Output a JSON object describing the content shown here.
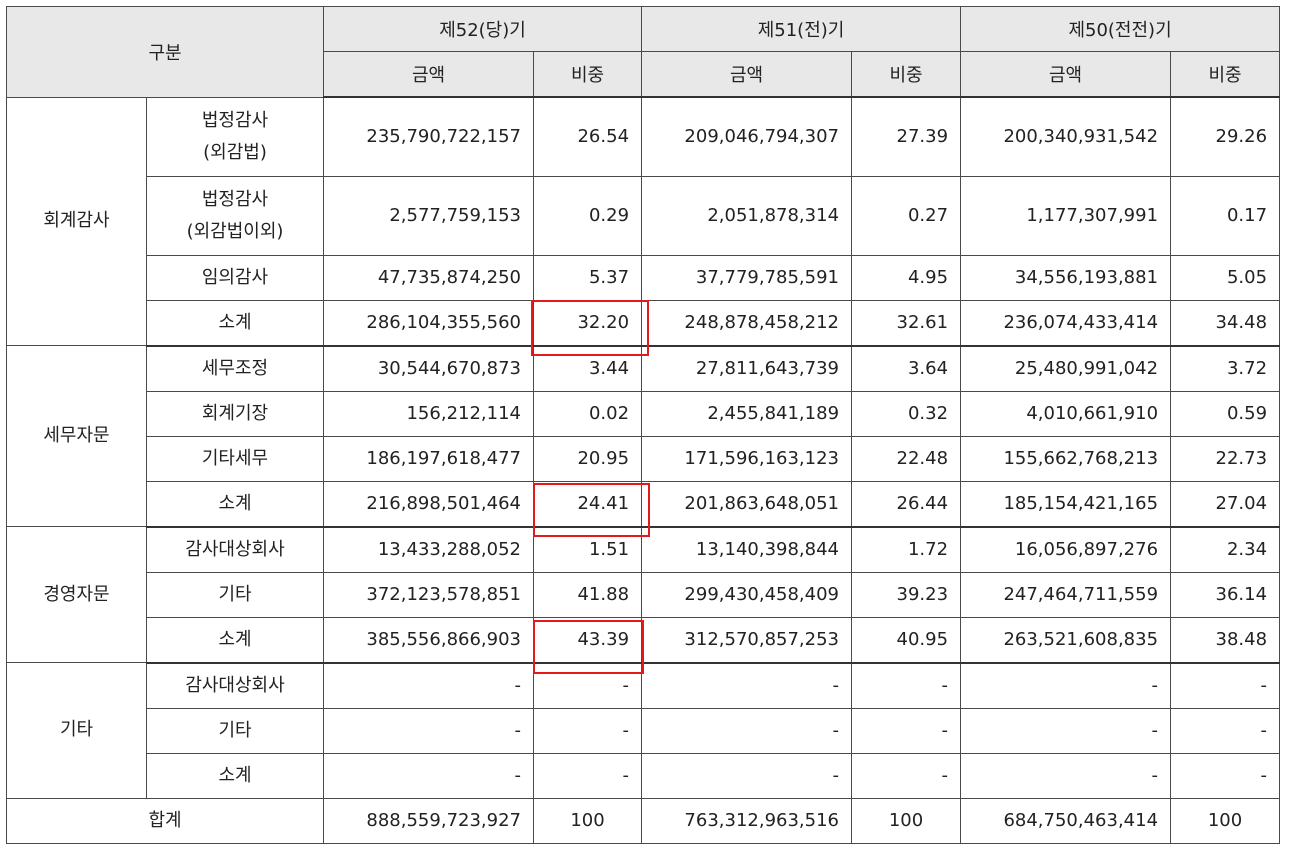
{
  "header": {
    "category": "구분",
    "periods": [
      "제52(당)기",
      "제51(전)기",
      "제50(전전)기"
    ],
    "amount": "금액",
    "ratio": "비중"
  },
  "groups": [
    {
      "name": "회계감사",
      "rows": [
        {
          "item": "법정감사\n(외감법)",
          "values": [
            "235,790,722,157",
            "26.54",
            "209,046,794,307",
            "27.39",
            "200,340,931,542",
            "29.26"
          ]
        },
        {
          "item": "법정감사\n(외감법이외)",
          "values": [
            "2,577,759,153",
            "0.29",
            "2,051,878,314",
            "0.27",
            "1,177,307,991",
            "0.17"
          ]
        },
        {
          "item": "임의감사",
          "values": [
            "47,735,874,250",
            "5.37",
            "37,779,785,591",
            "4.95",
            "34,556,193,881",
            "5.05"
          ]
        },
        {
          "item": "소계",
          "values": [
            "286,104,355,560",
            "32.20",
            "248,878,458,212",
            "32.61",
            "236,074,433,414",
            "34.48"
          ]
        }
      ]
    },
    {
      "name": "세무자문",
      "rows": [
        {
          "item": "세무조정",
          "values": [
            "30,544,670,873",
            "3.44",
            "27,811,643,739",
            "3.64",
            "25,480,991,042",
            "3.72"
          ]
        },
        {
          "item": "회계기장",
          "values": [
            "156,212,114",
            "0.02",
            "2,455,841,189",
            "0.32",
            "4,010,661,910",
            "0.59"
          ]
        },
        {
          "item": "기타세무",
          "values": [
            "186,197,618,477",
            "20.95",
            "171,596,163,123",
            "22.48",
            "155,662,768,213",
            "22.73"
          ]
        },
        {
          "item": "소계",
          "values": [
            "216,898,501,464",
            "24.41",
            "201,863,648,051",
            "26.44",
            "185,154,421,165",
            "27.04"
          ]
        }
      ]
    },
    {
      "name": "경영자문",
      "rows": [
        {
          "item": "감사대상회사",
          "values": [
            "13,433,288,052",
            "1.51",
            "13,140,398,844",
            "1.72",
            "16,056,897,276",
            "2.34"
          ]
        },
        {
          "item": "기타",
          "values": [
            "372,123,578,851",
            "41.88",
            "299,430,458,409",
            "39.23",
            "247,464,711,559",
            "36.14"
          ]
        },
        {
          "item": "소계",
          "values": [
            "385,556,866,903",
            "43.39",
            "312,570,857,253",
            "40.95",
            "263,521,608,835",
            "38.48"
          ]
        }
      ]
    },
    {
      "name": "기타",
      "rows": [
        {
          "item": "감사대상회사",
          "values": [
            "-",
            "-",
            "-",
            "-",
            "-",
            "-"
          ]
        },
        {
          "item": "기타",
          "values": [
            "-",
            "-",
            "-",
            "-",
            "-",
            "-"
          ]
        },
        {
          "item": "소계",
          "values": [
            "-",
            "-",
            "-",
            "-",
            "-",
            "-"
          ]
        }
      ]
    }
  ],
  "total": {
    "label": "합계",
    "values": [
      "888,559,723,927",
      "100",
      "763,312,963,516",
      "100",
      "684,750,463,414",
      "100"
    ]
  },
  "highlight_color": "#e21a1a"
}
